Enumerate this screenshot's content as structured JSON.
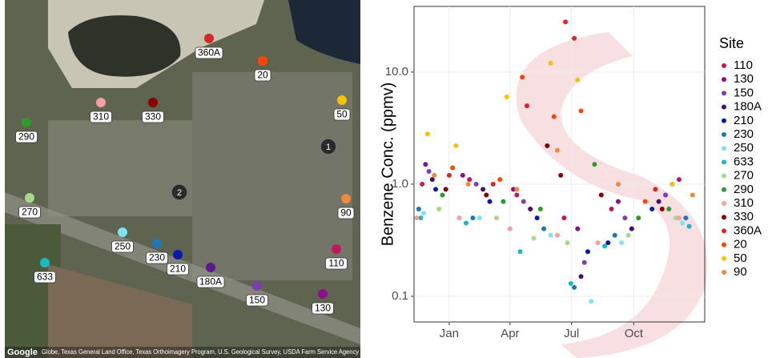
{
  "map": {
    "attribution_logo": "Google",
    "attribution": "Globe, Texas General Land Office, Texas Orthoimagery Program, U.S. Geological Survey, USDA Farm Service Agency",
    "sites": [
      {
        "label": "360A",
        "color": "#d62728"
      },
      {
        "label": "20",
        "color": "#ff4500"
      },
      {
        "label": "50",
        "color": "#f5c400"
      },
      {
        "label": "310",
        "color": "#f4a0a0"
      },
      {
        "label": "330",
        "color": "#8b0000"
      },
      {
        "label": "290",
        "color": "#2e9b2e"
      },
      {
        "label": "270",
        "color": "#a6d98a"
      },
      {
        "label": "90",
        "color": "#f0883e"
      },
      {
        "label": "250",
        "color": "#7fe3ef"
      },
      {
        "label": "230",
        "color": "#1f77b4"
      },
      {
        "label": "210",
        "color": "#0a1aa8"
      },
      {
        "label": "633",
        "color": "#1ab8c0"
      },
      {
        "label": "110",
        "color": "#c2185b"
      },
      {
        "label": "180A",
        "color": "#5b1a8c"
      },
      {
        "label": "150",
        "color": "#7b3fb0"
      },
      {
        "label": "130",
        "color": "#8e0f8e"
      }
    ],
    "markers": [
      "1",
      "2"
    ]
  },
  "chart_data": {
    "type": "scatter",
    "y_label": "Benzene Conc. (ppmv)",
    "legend_title": "Site",
    "log_y": true,
    "grid": true,
    "legend": "right",
    "xlim": [
      -52,
      378
    ],
    "ylim": [
      0.059,
      38.5
    ],
    "xticks": [
      {
        "value": 0,
        "label": "Jan"
      },
      {
        "value": 90,
        "label": "Apr"
      },
      {
        "value": 181,
        "label": "Jul"
      },
      {
        "value": 273,
        "label": "Oct"
      }
    ],
    "yticks": [
      0.1,
      {
        "value": 1,
        "label": "1.0"
      },
      {
        "value": 10,
        "label": "10.0"
      }
    ],
    "series": [
      {
        "name": "110",
        "color": "#c2185b",
        "x": [
          -40,
          30,
          100,
          170,
          240,
          340
        ],
        "values": [
          1.0,
          1.1,
          0.8,
          0.5,
          0.6,
          1.1
        ]
      },
      {
        "name": "130",
        "color": "#8e0f8e",
        "x": [
          -35,
          20,
          95,
          190,
          250,
          330
        ],
        "values": [
          1.5,
          1.2,
          0.9,
          0.4,
          0.7,
          1.0
        ]
      },
      {
        "name": "150",
        "color": "#7b3fb0",
        "x": [
          -30,
          40,
          110,
          200,
          260,
          320
        ],
        "values": [
          1.3,
          1.0,
          0.7,
          0.2,
          0.5,
          0.8
        ]
      },
      {
        "name": "180A",
        "color": "#4b0c6b",
        "x": [
          -25,
          50,
          120,
          195,
          270,
          310
        ],
        "values": [
          1.1,
          0.9,
          0.6,
          0.15,
          0.4,
          0.7
        ]
      },
      {
        "name": "210",
        "color": "#0a1aa8",
        "x": [
          -20,
          60,
          130,
          205,
          235,
          300
        ],
        "values": [
          0.9,
          0.7,
          0.5,
          0.25,
          0.3,
          0.6
        ]
      },
      {
        "name": "230",
        "color": "#1f77b4",
        "x": [
          -45,
          35,
          140,
          185,
          245,
          350
        ],
        "values": [
          0.6,
          0.5,
          0.4,
          0.12,
          0.35,
          0.5
        ]
      },
      {
        "name": "250",
        "color": "#7fe3ef",
        "x": [
          -38,
          45,
          150,
          210,
          255,
          345
        ],
        "values": [
          0.55,
          0.5,
          0.35,
          0.09,
          0.3,
          0.45
        ]
      },
      {
        "name": "633",
        "color": "#1ab8c0",
        "x": [
          -42,
          25,
          105,
          180,
          230,
          355
        ],
        "values": [
          0.5,
          0.45,
          0.25,
          0.13,
          0.28,
          0.42
        ]
      },
      {
        "name": "270",
        "color": "#a6d98a",
        "x": [
          -15,
          70,
          125,
          175,
          265,
          335
        ],
        "values": [
          0.6,
          0.5,
          0.33,
          0.3,
          0.35,
          0.5
        ]
      },
      {
        "name": "290",
        "color": "#2e9b2e",
        "x": [
          -10,
          80,
          135,
          215,
          280,
          325
        ],
        "values": [
          0.8,
          0.7,
          0.6,
          1.5,
          0.5,
          0.6
        ]
      },
      {
        "name": "310",
        "color": "#f4a0a0",
        "x": [
          -48,
          15,
          90,
          160,
          220,
          340
        ],
        "values": [
          0.5,
          0.5,
          0.4,
          0.35,
          0.3,
          0.5
        ]
      },
      {
        "name": "330",
        "color": "#8b0000",
        "x": [
          -5,
          55,
          145,
          165,
          225,
          315
        ],
        "values": [
          0.9,
          0.8,
          2.2,
          1.2,
          0.8,
          0.6
        ]
      },
      {
        "name": "360A",
        "color": "#d62728",
        "x": [
          0,
          65,
          115,
          172,
          185,
          305
        ],
        "values": [
          1.2,
          1.0,
          5.0,
          28,
          20,
          0.9
        ]
      },
      {
        "name": "20",
        "color": "#ff4500",
        "x": [
          5,
          75,
          108,
          155,
          195,
          290
        ],
        "values": [
          1.4,
          1.1,
          9.0,
          4.0,
          4.5,
          0.7
        ]
      },
      {
        "name": "50",
        "color": "#f5c400",
        "x": [
          -32,
          10,
          85,
          150,
          190,
          330
        ],
        "values": [
          2.8,
          2.2,
          6.0,
          12,
          8.5,
          1.0
        ]
      },
      {
        "name": "90",
        "color": "#f0883e",
        "x": [
          -22,
          28,
          100,
          160,
          250,
          360
        ],
        "values": [
          1.2,
          1.0,
          0.9,
          2.0,
          1.0,
          0.8
        ]
      }
    ]
  }
}
